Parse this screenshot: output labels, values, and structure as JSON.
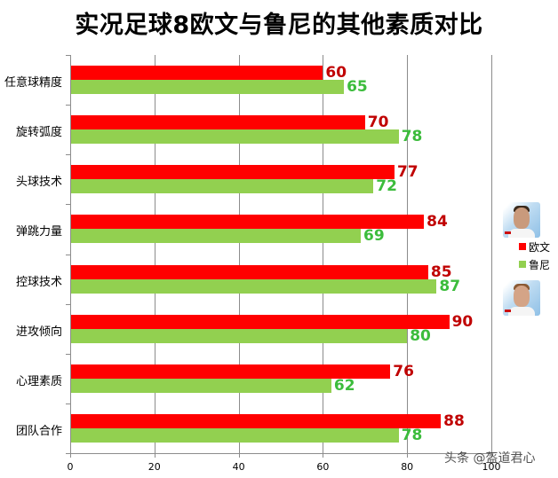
{
  "title": "实况足球8欧文与鲁尼的其他素质对比",
  "legend": [
    {
      "label": "欧文",
      "color": "#ff0000"
    },
    {
      "label": "鲁尼",
      "color": "#92d050"
    }
  ],
  "watermark": "头条 @盔道君心",
  "x_ticks": [
    "0",
    "20",
    "40",
    "60",
    "80",
    "100"
  ],
  "chart_data": {
    "type": "bar",
    "orientation": "horizontal",
    "title": "实况足球8欧文与鲁尼的其他素质对比",
    "categories": [
      "任意球精度",
      "旋转弧度",
      "头球技术",
      "弹跳力量",
      "控球技术",
      "进攻倾向",
      "心理素质",
      "团队合作"
    ],
    "series": [
      {
        "name": "欧文",
        "color": "#ff0000",
        "values": [
          60,
          70,
          77,
          84,
          85,
          90,
          76,
          88
        ]
      },
      {
        "name": "鲁尼",
        "color": "#92d050",
        "values": [
          65,
          78,
          72,
          69,
          87,
          80,
          62,
          78
        ]
      }
    ],
    "xlabel": "",
    "ylabel": "",
    "xlim": [
      0,
      100
    ],
    "x_ticks": [
      0,
      20,
      40,
      60,
      80,
      100
    ],
    "grid": true,
    "data_labels": true,
    "legend_position": "right"
  }
}
